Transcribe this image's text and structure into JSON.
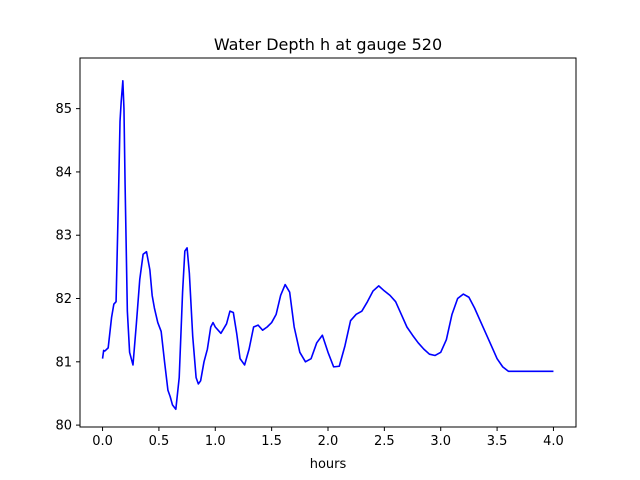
{
  "chart_data": {
    "type": "line",
    "title": "Water Depth h at gauge 520",
    "xlabel": "hours",
    "ylabel": "",
    "xlim": [
      -0.2,
      4.2
    ],
    "ylim": [
      79.97,
      85.8
    ],
    "x_ticks": [
      0.0,
      0.5,
      1.0,
      1.5,
      2.0,
      2.5,
      3.0,
      3.5,
      4.0
    ],
    "x_tick_labels": [
      "0.0",
      "0.5",
      "1.0",
      "1.5",
      "2.0",
      "2.5",
      "3.0",
      "3.5",
      "4.0"
    ],
    "y_ticks": [
      80,
      81,
      82,
      83,
      84,
      85
    ],
    "y_tick_labels": [
      "80",
      "81",
      "82",
      "83",
      "84",
      "85"
    ],
    "grid": false,
    "series": [
      {
        "color": "#0000ff",
        "x": [
          0.0,
          0.01,
          0.02,
          0.05,
          0.08,
          0.1,
          0.12,
          0.14,
          0.155,
          0.165,
          0.18,
          0.19,
          0.2,
          0.22,
          0.24,
          0.27,
          0.3,
          0.33,
          0.36,
          0.39,
          0.42,
          0.44,
          0.46,
          0.49,
          0.52,
          0.55,
          0.58,
          0.6,
          0.62,
          0.65,
          0.68,
          0.71,
          0.73,
          0.75,
          0.77,
          0.8,
          0.83,
          0.85,
          0.87,
          0.9,
          0.93,
          0.96,
          0.98,
          1.0,
          1.05,
          1.1,
          1.13,
          1.16,
          1.19,
          1.22,
          1.26,
          1.3,
          1.34,
          1.38,
          1.42,
          1.46,
          1.5,
          1.54,
          1.58,
          1.62,
          1.66,
          1.7,
          1.75,
          1.8,
          1.85,
          1.9,
          1.95,
          2.0,
          2.05,
          2.1,
          2.15,
          2.2,
          2.25,
          2.3,
          2.35,
          2.4,
          2.45,
          2.5,
          2.55,
          2.6,
          2.65,
          2.7,
          2.75,
          2.8,
          2.85,
          2.9,
          2.95,
          3.0,
          3.05,
          3.1,
          3.15,
          3.2,
          3.25,
          3.3,
          3.35,
          3.4,
          3.45,
          3.5,
          3.55,
          3.6,
          3.65,
          3.7,
          3.75,
          3.8,
          3.85,
          3.9,
          3.95,
          4.0
        ],
        "values": [
          81.05,
          81.18,
          81.17,
          81.22,
          81.7,
          81.91,
          81.95,
          83.5,
          84.8,
          85.1,
          85.44,
          85.0,
          83.8,
          81.8,
          81.15,
          80.95,
          81.6,
          82.3,
          82.7,
          82.74,
          82.45,
          82.05,
          81.85,
          81.62,
          81.48,
          81.0,
          80.55,
          80.45,
          80.32,
          80.25,
          80.75,
          82.1,
          82.75,
          82.8,
          82.4,
          81.4,
          80.75,
          80.65,
          80.7,
          81.0,
          81.2,
          81.55,
          81.62,
          81.55,
          81.45,
          81.6,
          81.8,
          81.78,
          81.45,
          81.05,
          80.95,
          81.2,
          81.55,
          81.58,
          81.5,
          81.55,
          81.62,
          81.75,
          82.05,
          82.22,
          82.1,
          81.55,
          81.15,
          81.0,
          81.05,
          81.3,
          81.42,
          81.15,
          80.92,
          80.93,
          81.25,
          81.65,
          81.75,
          81.8,
          81.95,
          82.12,
          82.2,
          82.12,
          82.05,
          81.95,
          81.75,
          81.55,
          81.42,
          81.3,
          81.2,
          81.12,
          81.1,
          81.15,
          81.35,
          81.75,
          82.0,
          82.07,
          82.02,
          81.85,
          81.65,
          81.45,
          81.25,
          81.05,
          80.92,
          80.85,
          80.85,
          80.85,
          80.85,
          80.85,
          80.85,
          80.85,
          80.85,
          80.85
        ]
      }
    ]
  }
}
